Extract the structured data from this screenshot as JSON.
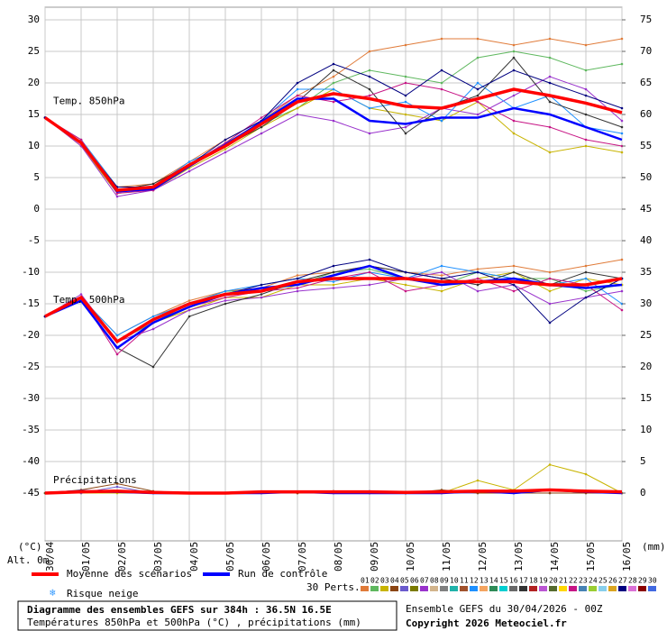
{
  "chart_data": {
    "type": "line",
    "title": "Diagramme des ensembles GEFS sur 384h : 36.5N 16.5E",
    "subtitle": "Températures 850hPa et 500hPa (°C) , précipitations (mm)",
    "run_info": "Ensemble GEFS du 30/04/2026 - 00Z",
    "copyright": "Copyright 2026 Meteociel.fr",
    "y_unit": "(°C)",
    "y2_unit": "(mm)",
    "altitude": "Alt. 0m",
    "categories": [
      "30/04",
      "01/05",
      "02/05",
      "03/05",
      "04/05",
      "05/05",
      "06/05",
      "07/05",
      "08/05",
      "09/05",
      "10/05",
      "11/05",
      "12/05",
      "13/05",
      "14/05",
      "15/05",
      "16/05"
    ],
    "ylim": [
      -52.5,
      32
    ],
    "yticks": [
      30,
      25,
      20,
      15,
      10,
      5,
      0,
      -5,
      -10,
      -15,
      -20,
      -25,
      -30,
      -35,
      -40,
      -45
    ],
    "y2lim": [
      -7.5,
      77
    ],
    "y2ticks": [
      75,
      70,
      65,
      60,
      55,
      50,
      45,
      40,
      35,
      30,
      25,
      20,
      15,
      10,
      5,
      0
    ],
    "grid": true,
    "legend": {
      "mean": {
        "name": "Moyenne des scénarios",
        "color": "#ff0000"
      },
      "control": {
        "name": "Run de contrôle",
        "color": "#0000ff"
      },
      "perts": "30 Perts.",
      "snow": "Risque neige",
      "members": [
        {
          "name": "01",
          "color": "#e07b39"
        },
        {
          "name": "02",
          "color": "#5fb85f"
        },
        {
          "name": "03",
          "color": "#c8b400"
        },
        {
          "name": "04",
          "color": "#8b4513"
        },
        {
          "name": "05",
          "color": "#6a5acd"
        },
        {
          "name": "06",
          "color": "#7b7b00"
        },
        {
          "name": "07",
          "color": "#9932cc"
        },
        {
          "name": "08",
          "color": "#d2b48c"
        },
        {
          "name": "09",
          "color": "#808080"
        },
        {
          "name": "10",
          "color": "#20b2aa"
        },
        {
          "name": "11",
          "color": "#a0522d"
        },
        {
          "name": "12",
          "color": "#1e90ff"
        },
        {
          "name": "13",
          "color": "#f4a460"
        },
        {
          "name": "14",
          "color": "#2e8b57"
        },
        {
          "name": "15",
          "color": "#00ced1"
        },
        {
          "name": "16",
          "color": "#696969"
        },
        {
          "name": "17",
          "color": "#333333"
        },
        {
          "name": "18",
          "color": "#b22222"
        },
        {
          "name": "19",
          "color": "#ba55d3"
        },
        {
          "name": "20",
          "color": "#556b2f"
        },
        {
          "name": "21",
          "color": "#ffd700"
        },
        {
          "name": "22",
          "color": "#c71585"
        },
        {
          "name": "23",
          "color": "#4682b4"
        },
        {
          "name": "24",
          "color": "#9acd32"
        },
        {
          "name": "25",
          "color": "#87ceeb"
        },
        {
          "name": "26",
          "color": "#daa520"
        },
        {
          "name": "27",
          "color": "#000080"
        },
        {
          "name": "28",
          "color": "#da70d6"
        },
        {
          "name": "29",
          "color": "#8b0000"
        },
        {
          "name": "30",
          "color": "#4169e1"
        }
      ]
    },
    "panels": [
      {
        "label": "Temp. 850hPa",
        "axis": "y",
        "mean": [
          14.5,
          10.5,
          3,
          3.5,
          7,
          10,
          13.5,
          17,
          18.3,
          17.5,
          16.3,
          16,
          17.5,
          19,
          18,
          16.8,
          15.3
        ],
        "control": [
          14.5,
          10.5,
          2.8,
          3.2,
          6.8,
          10.2,
          13.8,
          17.5,
          17.5,
          14,
          13.5,
          14.5,
          14.5,
          16,
          15,
          13,
          11
        ],
        "perturbations": [
          {
            "color": "#e07b39",
            "values": [
              14.5,
              11,
              3.5,
              4,
              7.5,
              11,
              14,
              18,
              21,
              25,
              26,
              27,
              27,
              26,
              27,
              26,
              27
            ]
          },
          {
            "color": "#5fb85f",
            "values": [
              14.5,
              10.5,
              3,
              3.5,
              7,
              10.5,
              13.5,
              16,
              20,
              22,
              21,
              20,
              24,
              25,
              24,
              22,
              23
            ]
          },
          {
            "color": "#c8b400",
            "values": [
              14.5,
              10,
              2.5,
              3,
              6.5,
              9.5,
              13,
              16,
              19,
              16,
              15,
              14,
              17,
              12,
              9,
              10,
              9
            ]
          },
          {
            "color": "#9932cc",
            "values": [
              14.5,
              10,
              2,
              3,
              6,
              9,
              12,
              15,
              14,
              12,
              13,
              16,
              15,
              18,
              21,
              19,
              14
            ]
          },
          {
            "color": "#1e90ff",
            "values": [
              14.5,
              11,
              3.5,
              3.5,
              7.5,
              10,
              14,
              19,
              19,
              16,
              17,
              14,
              20,
              16,
              18,
              13,
              12
            ]
          },
          {
            "color": "#333333",
            "values": [
              14.5,
              10.5,
              3,
              4,
              7,
              10,
              13,
              17,
              22,
              19,
              12,
              16,
              18,
              24,
              17,
              15,
              13
            ]
          },
          {
            "color": "#c71585",
            "values": [
              14.5,
              11,
              2.5,
              3,
              7,
              10.5,
              14.5,
              18,
              17,
              18,
              20,
              19,
              17,
              14,
              13,
              11,
              10
            ]
          },
          {
            "color": "#000080",
            "values": [
              14.5,
              10.5,
              3.5,
              3.5,
              7,
              11,
              14,
              20,
              23,
              21,
              18,
              22,
              19,
              22,
              20,
              18,
              16
            ]
          }
        ]
      },
      {
        "label": "Temp. 500hPa",
        "axis": "y",
        "mean": [
          -17,
          -14,
          -21,
          -17.5,
          -15,
          -13.5,
          -13,
          -11.5,
          -11,
          -11,
          -11,
          -11.5,
          -11.5,
          -11.5,
          -12,
          -12,
          -11
        ],
        "control": [
          -17,
          -14.5,
          -22,
          -18,
          -15.5,
          -13.5,
          -12.5,
          -12,
          -10.5,
          -9,
          -11,
          -12,
          -11.5,
          -11,
          -12,
          -12.5,
          -12
        ],
        "perturbations": [
          {
            "color": "#e07b39",
            "values": [
              -17,
              -14,
              -20,
              -17,
              -14.5,
              -13,
              -12.5,
              -10.5,
              -10,
              -9,
              -10,
              -10.5,
              -9.5,
              -9,
              -10,
              -9,
              -8
            ]
          },
          {
            "color": "#5fb85f",
            "values": [
              -17,
              -14,
              -21,
              -18,
              -15,
              -13,
              -13,
              -12,
              -10,
              -9.5,
              -11,
              -12,
              -10,
              -11,
              -11,
              -13,
              -12
            ]
          },
          {
            "color": "#c8b400",
            "values": [
              -17,
              -14.5,
              -22,
              -18,
              -16,
              -14,
              -14,
              -12,
              -12,
              -11,
              -12,
              -13,
              -11,
              -10,
              -13,
              -11,
              -12
            ]
          },
          {
            "color": "#9932cc",
            "values": [
              -17,
              -13.5,
              -21,
              -19,
              -16,
              -14.5,
              -14,
              -13,
              -12.5,
              -12,
              -11,
              -10,
              -13,
              -12,
              -15,
              -14,
              -13
            ]
          },
          {
            "color": "#1e90ff",
            "values": [
              -17,
              -14,
              -20,
              -17,
              -15,
              -13,
              -12,
              -11,
              -11.5,
              -10,
              -11,
              -9,
              -10,
              -11,
              -12,
              -11,
              -15
            ]
          },
          {
            "color": "#333333",
            "values": [
              -17,
              -14.5,
              -22,
              -25,
              -17,
              -15,
              -13.5,
              -11.5,
              -10,
              -9,
              -10,
              -11,
              -12,
              -10,
              -12,
              -10,
              -11
            ]
          },
          {
            "color": "#c71585",
            "values": [
              -17,
              -14,
              -23,
              -18,
              -15.5,
              -14,
              -13,
              -12.5,
              -11,
              -10,
              -13,
              -12,
              -11,
              -13,
              -11,
              -12,
              -16
            ]
          },
          {
            "color": "#000080",
            "values": [
              -17,
              -14,
              -21,
              -17.5,
              -15,
              -13.5,
              -12,
              -11,
              -9,
              -8,
              -10,
              -11,
              -10,
              -12,
              -18,
              -14,
              -11
            ]
          }
        ]
      },
      {
        "label": "Précipitations",
        "axis": "y2",
        "mean": [
          0,
          0.2,
          0.3,
          0.1,
          0,
          0,
          0.2,
          0.2,
          0.2,
          0.2,
          0.1,
          0.2,
          0.3,
          0.3,
          0.5,
          0.3,
          0.2
        ],
        "control": [
          0,
          0.3,
          0.2,
          0,
          0,
          0,
          0,
          0.2,
          0,
          0,
          0,
          0,
          0.3,
          0,
          0.5,
          0.2,
          0
        ],
        "perturbations": [
          {
            "color": "#c8b400",
            "values": [
              0,
              0,
              0,
              0,
              0,
              0,
              0,
              0,
              0,
              0,
              0,
              0,
              2,
              0.5,
              4.5,
              3,
              0
            ]
          },
          {
            "color": "#6a5acd",
            "values": [
              0,
              0,
              1,
              0,
              0,
              0,
              0,
              0,
              0,
              0.3,
              0,
              0,
              0,
              0,
              0,
              0,
              0
            ]
          },
          {
            "color": "#8b4513",
            "values": [
              0,
              0.5,
              1.5,
              0.3,
              0,
              0,
              0.2,
              0,
              0.3,
              0,
              0,
              0.5,
              0,
              0,
              0,
              0,
              0
            ]
          }
        ]
      }
    ]
  }
}
